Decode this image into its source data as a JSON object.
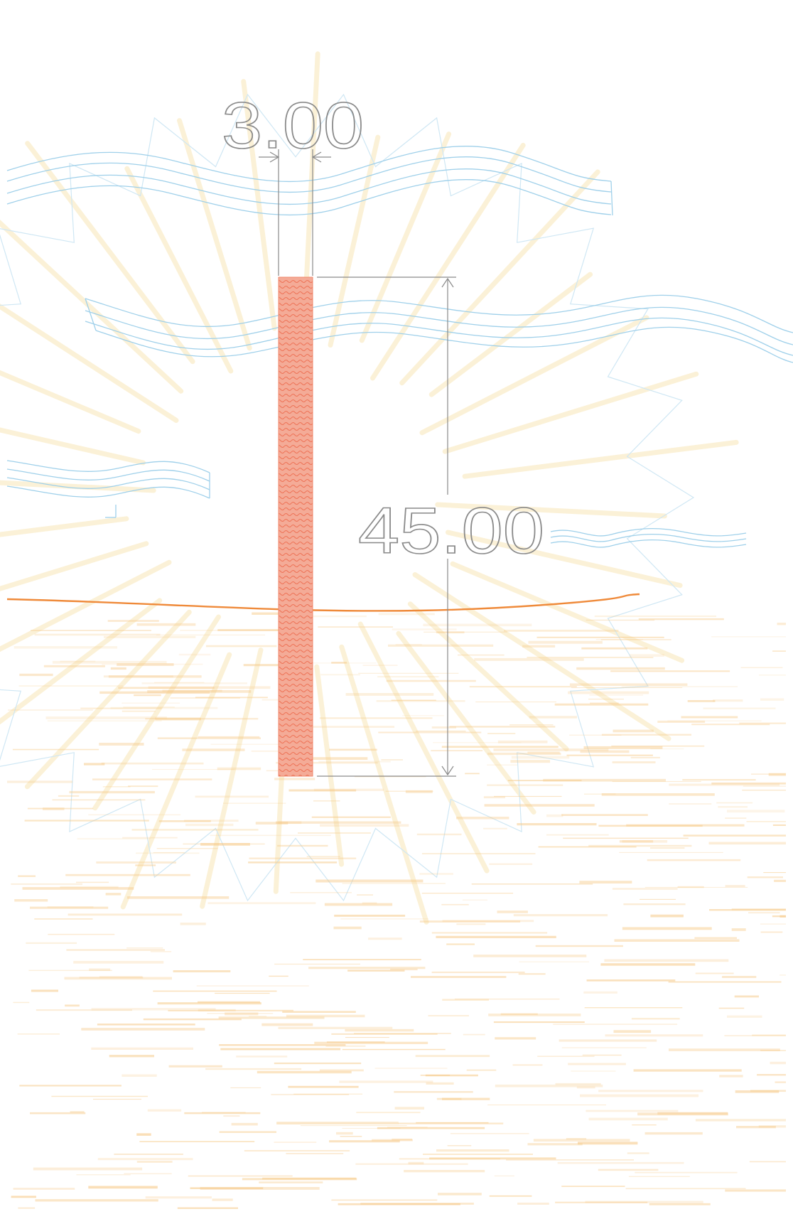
{
  "drawing": {
    "dimensions": {
      "width_label": "3.00",
      "height_label": "45.00"
    },
    "colors": {
      "background": "#ffffff",
      "water_lines": "#9fd0ea",
      "sun_rays": "#f8e7b8",
      "ground_texture": "#f6c987",
      "ground_line": "#ef8a3a",
      "pile_fill": "#f2a28d",
      "pile_pattern": "#f06a4a",
      "dimension_lines": "#8a8a8a"
    }
  }
}
